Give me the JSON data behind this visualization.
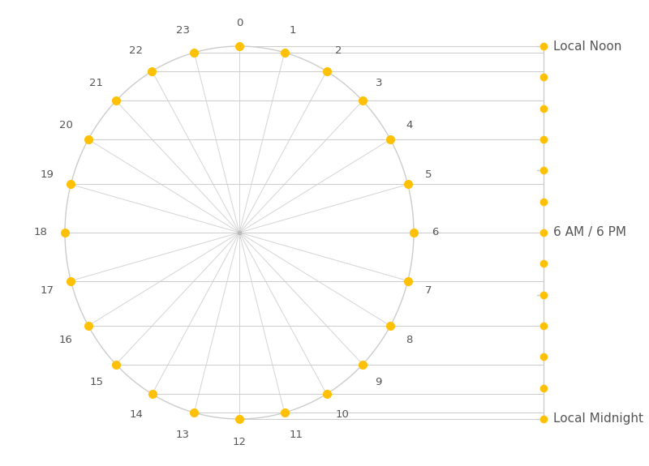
{
  "num_hours": 24,
  "dot_color": "#FFC107",
  "line_color": "#cccccc",
  "circle_color": "#cccccc",
  "spoke_color": "#d4d4d4",
  "label_color": "#555555",
  "label_fontsize": 9.5,
  "scale_label_noon": "Local Noon",
  "scale_label_6": "6 AM / 6 PM",
  "scale_label_midnight": "Local Midnight",
  "scale_tick_indices": [
    0,
    4,
    8,
    12
  ],
  "bg_color": "#ffffff",
  "hour_labels": [
    "0",
    "1",
    "2",
    "3",
    "4",
    "5",
    "6",
    "7",
    "8",
    "9",
    "10",
    "11",
    "12",
    "13",
    "14",
    "15",
    "16",
    "17",
    "18",
    "19",
    "20",
    "21",
    "22",
    "23"
  ]
}
